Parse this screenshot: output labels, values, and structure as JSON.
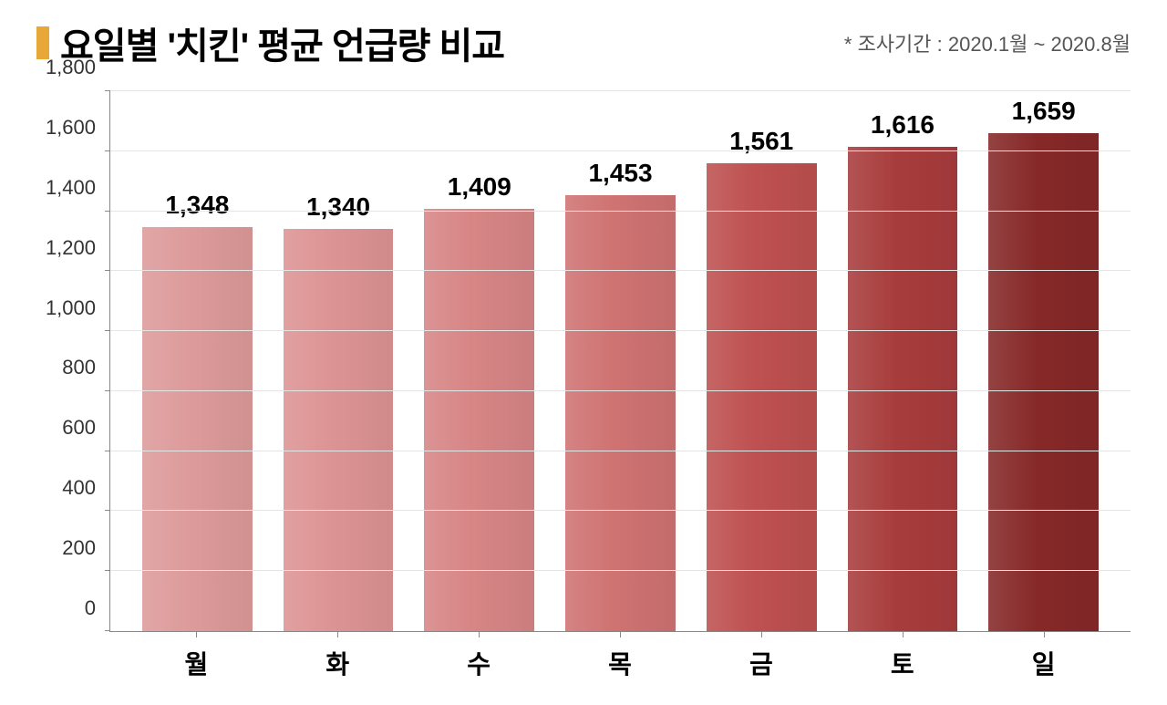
{
  "header": {
    "title": "요일별 '치킨' 평균 언급량 비교",
    "subtitle": "* 조사기간 : 2020.1월 ~ 2020.8월",
    "marker_color": "#e8a838"
  },
  "chart": {
    "type": "bar",
    "ylim": [
      0,
      1800
    ],
    "ytick_step": 200,
    "yticks": [
      0,
      200,
      400,
      600,
      800,
      1000,
      1200,
      1400,
      1600,
      1800
    ],
    "ytick_labels": [
      "0",
      "200",
      "400",
      "600",
      "800",
      "1,000",
      "1,200",
      "1,400",
      "1,600",
      "1,800"
    ],
    "grid_color": "#e5e5e5",
    "axis_color": "#888888",
    "background_color": "#ffffff",
    "title_fontsize": 40,
    "label_fontsize": 28,
    "tick_fontsize": 22,
    "bar_width": 0.78,
    "categories": [
      "월",
      "화",
      "수",
      "목",
      "금",
      "토",
      "일"
    ],
    "values": [
      1348,
      1340,
      1409,
      1453,
      1561,
      1616,
      1659
    ],
    "value_labels": [
      "1,348",
      "1,340",
      "1,409",
      "1,453",
      "1,561",
      "1,616",
      "1,659"
    ],
    "bar_colors": [
      "#dd9a9a",
      "#dd9393",
      "#d78585",
      "#cf7272",
      "#be5050",
      "#a83c3c",
      "#862828"
    ]
  }
}
